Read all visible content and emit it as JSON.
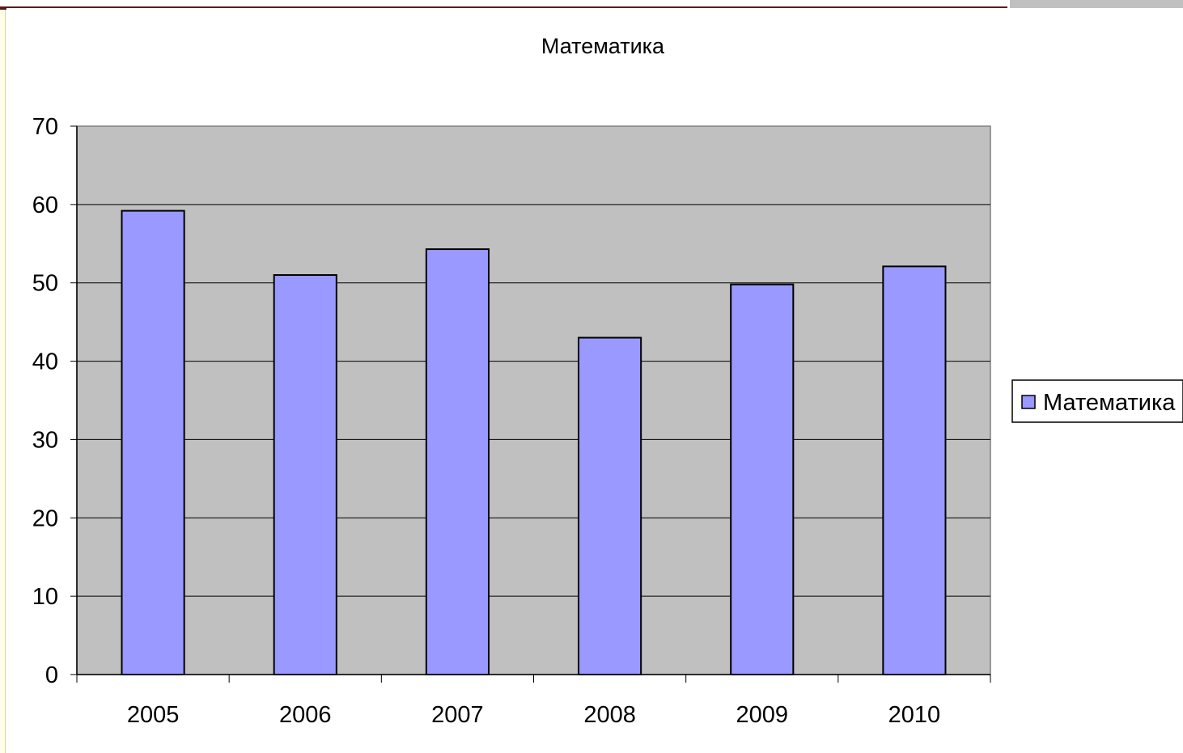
{
  "chart_data": {
    "type": "bar",
    "title": "Математика",
    "xlabel": "",
    "ylabel": "",
    "categories": [
      "2005",
      "2006",
      "2007",
      "2008",
      "2009",
      "2010"
    ],
    "series": [
      {
        "name": "Математика",
        "values": [
          59.2,
          51.0,
          54.3,
          43.0,
          49.8,
          52.1
        ],
        "color": "#9999ff"
      }
    ],
    "ylim": [
      0,
      70
    ],
    "yticks": [
      0,
      10,
      20,
      30,
      40,
      50,
      60,
      70
    ],
    "grid": true,
    "legend": "right",
    "colors": {
      "plot_background": "#c0c0c0",
      "bar_fill": "#9999ff",
      "bar_edge": "#000000",
      "gridline": "#000000"
    }
  }
}
